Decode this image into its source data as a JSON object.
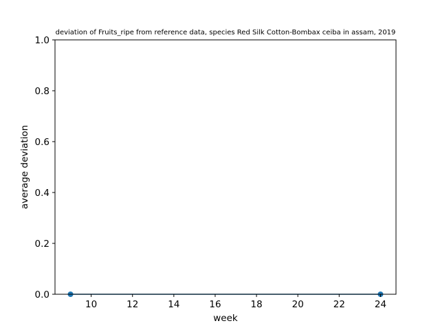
{
  "chart_data": {
    "type": "line",
    "title": "deviation of Fruits_ripe from reference data, species Red Silk Cotton-Bombax ceiba in assam, 2019",
    "xlabel": "week",
    "ylabel": "average deviation",
    "xlim": [
      8.25,
      24.75
    ],
    "ylim": [
      0,
      1.0
    ],
    "xticks": [
      10,
      12,
      14,
      16,
      18,
      20,
      22,
      24
    ],
    "xtick_labels": [
      "10",
      "12",
      "14",
      "16",
      "18",
      "20",
      "22",
      "24"
    ],
    "yticks": [
      0.0,
      0.2,
      0.4,
      0.6,
      0.8,
      1.0
    ],
    "ytick_labels": [
      "0.0",
      "0.2",
      "0.4",
      "0.6",
      "0.8",
      "1.0"
    ],
    "grid": false,
    "series": [
      {
        "color": "#1f77b4",
        "marker": "circle",
        "x": [
          9,
          24
        ],
        "y": [
          0,
          0
        ]
      }
    ]
  }
}
